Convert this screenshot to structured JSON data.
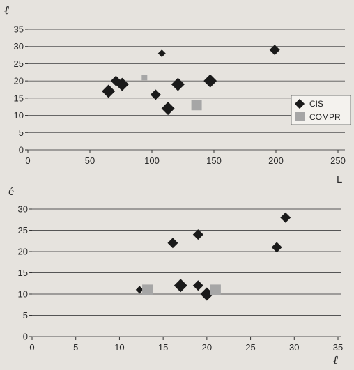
{
  "chart_data": [
    {
      "type": "scatter",
      "ylabel": "ℓ",
      "xlabel": "L",
      "xlim": [
        0,
        250
      ],
      "ylim": [
        0,
        35
      ],
      "xticks": [
        0,
        50,
        100,
        150,
        200,
        250
      ],
      "yticks": [
        0,
        5,
        10,
        15,
        20,
        25,
        30,
        35
      ],
      "grid": "horizontal",
      "legend_position": "right",
      "series": [
        {
          "name": "CIS",
          "marker": "diamond",
          "color": "#1a1a1a",
          "points": [
            {
              "x": 65,
              "y": 17,
              "size": "large"
            },
            {
              "x": 71,
              "y": 20,
              "size": "medium"
            },
            {
              "x": 76,
              "y": 19,
              "size": "large"
            },
            {
              "x": 108,
              "y": 28,
              "size": "small"
            },
            {
              "x": 103,
              "y": 16,
              "size": "medium"
            },
            {
              "x": 113,
              "y": 12,
              "size": "large"
            },
            {
              "x": 121,
              "y": 19,
              "size": "large"
            },
            {
              "x": 147,
              "y": 20,
              "size": "large"
            },
            {
              "x": 199,
              "y": 29,
              "size": "medium"
            }
          ]
        },
        {
          "name": "COMPR",
          "marker": "square",
          "color": "#a6a6a6",
          "points": [
            {
              "x": 94,
              "y": 21,
              "size": "small"
            },
            {
              "x": 136,
              "y": 13,
              "size": "large"
            }
          ]
        }
      ]
    },
    {
      "type": "scatter",
      "ylabel": "é",
      "xlabel": "ℓ",
      "xlim": [
        0,
        35
      ],
      "ylim": [
        0,
        30
      ],
      "xticks": [
        0,
        5,
        10,
        15,
        20,
        25,
        30,
        35
      ],
      "yticks": [
        0,
        5,
        10,
        15,
        20,
        25,
        30
      ],
      "grid": "horizontal",
      "series": [
        {
          "name": "CIS",
          "marker": "diamond",
          "color": "#1a1a1a",
          "points": [
            {
              "x": 12.3,
              "y": 11,
              "size": "small"
            },
            {
              "x": 16.1,
              "y": 22,
              "size": "medium"
            },
            {
              "x": 17.0,
              "y": 12,
              "size": "large"
            },
            {
              "x": 19.0,
              "y": 24,
              "size": "medium"
            },
            {
              "x": 19.0,
              "y": 12,
              "size": "medium"
            },
            {
              "x": 20.0,
              "y": 10,
              "size": "large"
            },
            {
              "x": 28.0,
              "y": 21,
              "size": "medium"
            },
            {
              "x": 29.0,
              "y": 28,
              "size": "medium"
            }
          ]
        },
        {
          "name": "COMPR",
          "marker": "square",
          "color": "#a6a6a6",
          "points": [
            {
              "x": 13.2,
              "y": 11,
              "size": "large"
            },
            {
              "x": 21.0,
              "y": 11,
              "size": "large"
            }
          ]
        }
      ]
    }
  ]
}
